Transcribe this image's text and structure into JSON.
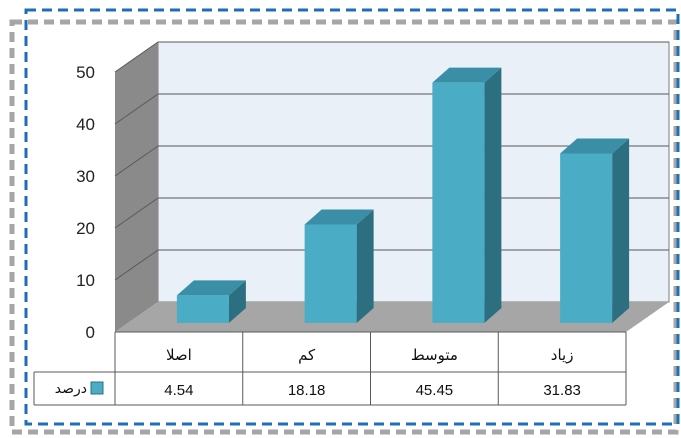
{
  "chart_data": {
    "type": "bar",
    "categories": [
      "اصلا",
      "کم",
      "متوسط",
      "زیاد"
    ],
    "series": [
      {
        "name": "درصد",
        "values": [
          4.54,
          18.18,
          45.45,
          31.83
        ]
      }
    ],
    "value_labels": [
      "4.54",
      "18.18",
      "45.45",
      "31.83"
    ],
    "ylim": [
      0,
      50
    ],
    "yticks": [
      "0",
      "10",
      "20",
      "30",
      "40",
      "50"
    ],
    "grid": true,
    "three_d": true,
    "data_table": true,
    "legend": "in data table, left",
    "colors": {
      "bar_front": "#4bacc6",
      "bar_top": "#3a8fa7",
      "bar_side": "#2c6f80",
      "back_wall": "#e9f0f7",
      "side_wall": "#8a8a8a",
      "floor": "#a6a6a6",
      "frame_outer": "#a6a6a6",
      "frame_inner": "#1f6fb5"
    }
  }
}
